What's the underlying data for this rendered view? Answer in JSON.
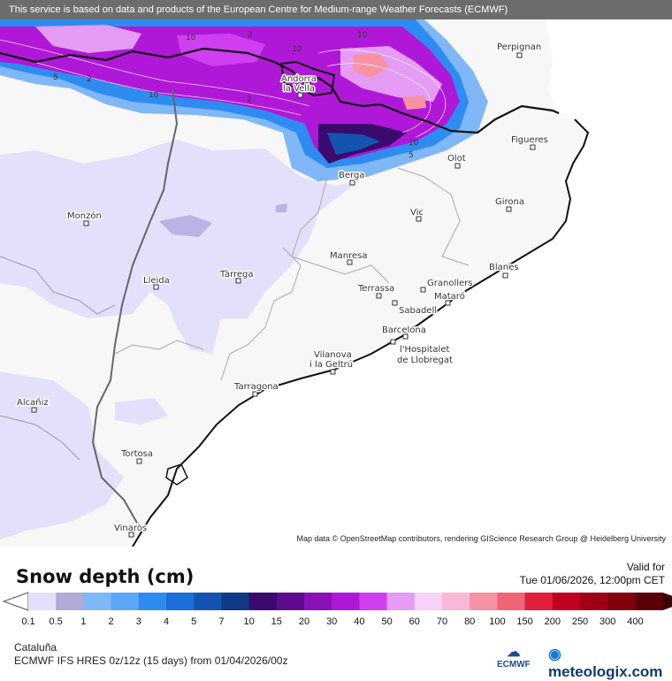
{
  "banner": "This service is based on data and products of the European Centre for Medium-range Weather Forecasts (ECMWF)",
  "attribution": "Map data © OpenStreetMap contributors, rendering GIScience Research Group @ Heidelberg University",
  "legend": {
    "title": "Snow depth (cm)",
    "valid_label": "Valid for",
    "valid_time": "Tue 01/06/2026, 12:00pm CET",
    "region": "Cataluña",
    "model": "ECMWF IFS HRES 0z/12z (15 days) from 01/04/2026/00z",
    "ticks": [
      "0.1",
      "0.5",
      "1",
      "2",
      "3",
      "4",
      "5",
      "7",
      "10",
      "15",
      "20",
      "30",
      "40",
      "50",
      "60",
      "70",
      "80",
      "100",
      "150",
      "200",
      "250",
      "300",
      "400"
    ],
    "colors": [
      "#e3e0fb",
      "#b0aad6",
      "#7fb7f7",
      "#5ca7f7",
      "#2e8cf0",
      "#1a6fd8",
      "#1454b0",
      "#0e3a86",
      "#3a0a6e",
      "#5d0b8e",
      "#8a10b8",
      "#b018d8",
      "#cf3ef0",
      "#e49cf5",
      "#f5d2f7",
      "#f9b8d6",
      "#f792a5",
      "#f06478",
      "#e0203c",
      "#c00020",
      "#a00014",
      "#80000c",
      "#5a0008"
    ]
  },
  "logos": {
    "ecmwf": "ECMWF",
    "meteologix": "meteologix.com"
  },
  "cities": [
    "Perpignan",
    "Andorra",
    "la Vella",
    "Figueres",
    "Olot",
    "Berga",
    "Girona",
    "Vic",
    "Monzón",
    "Manresa",
    "Lleida",
    "Tàrrega",
    "Blanes",
    "Terrassa",
    "Granollers",
    "Mataró",
    "Sabadell",
    "Barcelona",
    "l'Hospitalet",
    "de Llobregat",
    "Vilanova",
    "i la Geltrú",
    "Tarragona",
    "Alcañiz",
    "Tortosa",
    "Vinaròs"
  ],
  "contour_labels": [
    "5",
    "2",
    "10",
    "2",
    "10",
    "2",
    "10",
    "5",
    "10",
    "10"
  ]
}
